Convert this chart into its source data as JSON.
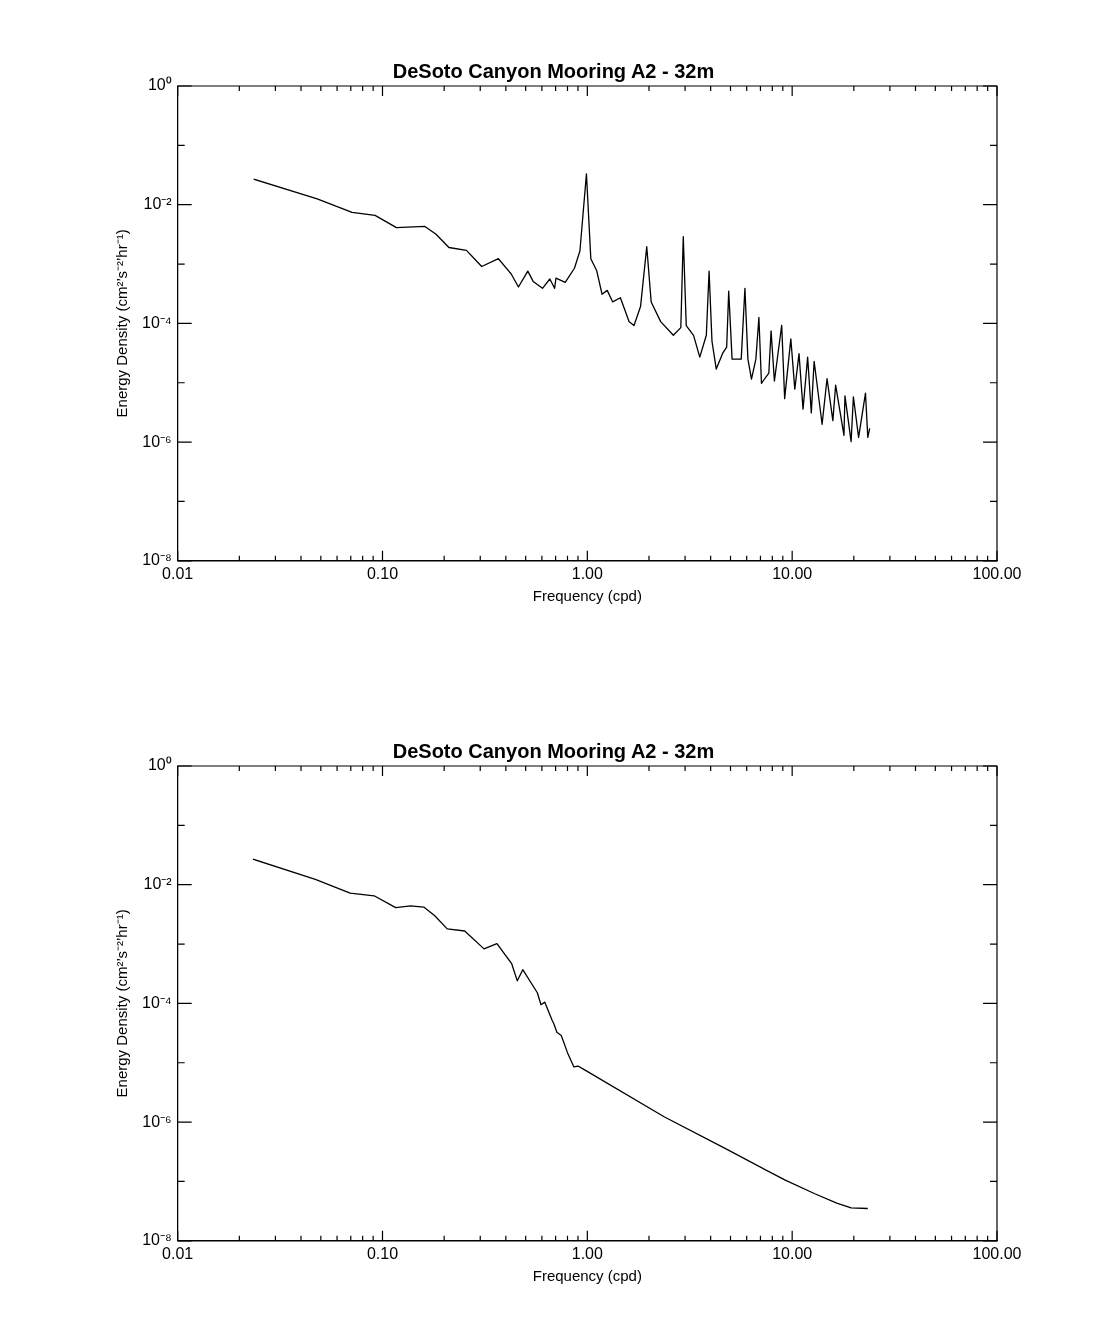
{
  "chart_data": [
    {
      "type": "line",
      "title": "DeSoto Canyon Mooring A2 - 32m",
      "xlabel": "Frequency (cpd)",
      "ylabel": "Energy Density (cm²’s⁻²’hr⁻¹)",
      "log": "xy",
      "marker": "none",
      "xlim": [
        0.01,
        100
      ],
      "ylim": [
        1e-08,
        1
      ],
      "xticks": [
        {
          "value": 0.01,
          "label": "0.01"
        },
        {
          "value": 0.02,
          "label": null
        },
        {
          "value": 0.03,
          "label": null
        },
        {
          "value": 0.04,
          "label": null
        },
        {
          "value": 0.05,
          "label": null
        },
        {
          "value": 0.06,
          "label": null
        },
        {
          "value": 0.07,
          "label": null
        },
        {
          "value": 0.08,
          "label": null
        },
        {
          "value": 0.09,
          "label": null
        },
        {
          "value": 0.1,
          "label": "0.10"
        },
        {
          "value": 0.2,
          "label": null
        },
        {
          "value": 0.3,
          "label": null
        },
        {
          "value": 0.4,
          "label": null
        },
        {
          "value": 0.5,
          "label": null
        },
        {
          "value": 0.6,
          "label": null
        },
        {
          "value": 0.7,
          "label": null
        },
        {
          "value": 0.8,
          "label": null
        },
        {
          "value": 0.9,
          "label": null
        },
        {
          "value": 1,
          "label": "1.00"
        },
        {
          "value": 2,
          "label": null
        },
        {
          "value": 3,
          "label": null
        },
        {
          "value": 4,
          "label": null
        },
        {
          "value": 5,
          "label": null
        },
        {
          "value": 6,
          "label": null
        },
        {
          "value": 7,
          "label": null
        },
        {
          "value": 8,
          "label": null
        },
        {
          "value": 9,
          "label": null
        },
        {
          "value": 10,
          "label": "10.00"
        },
        {
          "value": 20,
          "label": null
        },
        {
          "value": 30,
          "label": null
        },
        {
          "value": 40,
          "label": null
        },
        {
          "value": 50,
          "label": null
        },
        {
          "value": 60,
          "label": null
        },
        {
          "value": 70,
          "label": null
        },
        {
          "value": 80,
          "label": null
        },
        {
          "value": 90,
          "label": null
        },
        {
          "value": 100,
          "label": "100.00"
        }
      ],
      "yticks": [
        {
          "value": 1e-08,
          "label": "10⁻⁸"
        },
        {
          "value": 1e-07,
          "label": null
        },
        {
          "value": 1e-06,
          "label": "10⁻⁶"
        },
        {
          "value": 1e-05,
          "label": null
        },
        {
          "value": 0.0001,
          "label": "10⁻⁴"
        },
        {
          "value": 0.001,
          "label": null
        },
        {
          "value": 0.01,
          "label": "10⁻²"
        },
        {
          "value": 0.1,
          "label": null
        },
        {
          "value": 1,
          "label": "10⁰"
        }
      ],
      "series": [
        {
          "color": "#000000",
          "x": [
            0.0235,
            0.048,
            0.071,
            0.092,
            0.117,
            0.161,
            0.182,
            0.211,
            0.257,
            0.305,
            0.368,
            0.425,
            0.461,
            0.512,
            0.544,
            0.604,
            0.656,
            0.692,
            0.703,
            0.78,
            0.865,
            0.92,
            0.99,
            1.04,
            1.11,
            1.18,
            1.25,
            1.33,
            1.45,
            1.6,
            1.69,
            1.82,
            1.95,
            2.05,
            2.28,
            2.63,
            2.86,
            2.94,
            3.04,
            3.3,
            3.54,
            3.81,
            3.93,
            4.06,
            4.26,
            4.59,
            4.79,
            4.9,
            5.09,
            5.64,
            5.88,
            6.08,
            6.33,
            6.65,
            6.88,
            7.08,
            7.69,
            7.89,
            8.19,
            8.89,
            9.19,
            9.85,
            10.3,
            10.8,
            11.3,
            11.9,
            12.4,
            12.8,
            14,
            14.8,
            15.8,
            16.3,
            17.9,
            18.1,
            19.4,
            19.9,
            21.1,
            22.8,
            23.4,
            23.9
          ],
          "values": [
            0.027,
            0.0125,
            0.0074,
            0.0066,
            0.0041,
            0.0043,
            0.0032,
            0.0019,
            0.0017,
            0.00091,
            0.00123,
            0.00068,
            0.00041,
            0.00076,
            0.00051,
            0.00039,
            0.00056,
            0.00039,
            0.00058,
            0.00049,
            0.00085,
            0.00166,
            0.033,
            0.00123,
            0.00078,
            0.00031,
            0.00036,
            0.00023,
            0.00027,
            0.000107,
            9.2e-05,
            0.000195,
            0.00196,
            0.00023,
            0.000107,
            6.3e-05,
            8.5e-05,
            0.0029,
            9.2e-05,
            6.3e-05,
            2.7e-05,
            6.3e-05,
            0.00076,
            5e-05,
            1.7e-05,
            3.2e-05,
            4e-05,
            0.00035,
            2.5e-05,
            2.5e-05,
            0.00039,
            2.5e-05,
            1.15e-05,
            2.5e-05,
            0.000126,
            9.8e-06,
            1.45e-05,
            7.5e-05,
            1.07e-05,
            9.3e-05,
            5.4e-06,
            5.5e-05,
            7.8e-06,
            3.1e-05,
            3.6e-06,
            2.7e-05,
            3.1e-06,
            2.3e-05,
            2e-06,
            1.17e-05,
            2.3e-06,
            9.1e-06,
            1.3e-06,
            6e-06,
            1.02e-06,
            5.8e-06,
            1.2e-06,
            6.7e-06,
            1.2e-06,
            1.7e-06
          ]
        }
      ]
    },
    {
      "type": "line",
      "title": "DeSoto Canyon Mooring A2 - 32m",
      "xlabel": "Frequency (cpd)",
      "ylabel": "Energy Density (cm²’s⁻²’hr⁻¹)",
      "log": "xy",
      "marker": "none",
      "xlim": [
        0.01,
        100
      ],
      "ylim": [
        1e-08,
        1
      ],
      "xticks": [
        {
          "value": 0.01,
          "label": "0.01"
        },
        {
          "value": 0.02,
          "label": null
        },
        {
          "value": 0.03,
          "label": null
        },
        {
          "value": 0.04,
          "label": null
        },
        {
          "value": 0.05,
          "label": null
        },
        {
          "value": 0.06,
          "label": null
        },
        {
          "value": 0.07,
          "label": null
        },
        {
          "value": 0.08,
          "label": null
        },
        {
          "value": 0.09,
          "label": null
        },
        {
          "value": 0.1,
          "label": "0.10"
        },
        {
          "value": 0.2,
          "label": null
        },
        {
          "value": 0.3,
          "label": null
        },
        {
          "value": 0.4,
          "label": null
        },
        {
          "value": 0.5,
          "label": null
        },
        {
          "value": 0.6,
          "label": null
        },
        {
          "value": 0.7,
          "label": null
        },
        {
          "value": 0.8,
          "label": null
        },
        {
          "value": 0.9,
          "label": null
        },
        {
          "value": 1,
          "label": "1.00"
        },
        {
          "value": 2,
          "label": null
        },
        {
          "value": 3,
          "label": null
        },
        {
          "value": 4,
          "label": null
        },
        {
          "value": 5,
          "label": null
        },
        {
          "value": 6,
          "label": null
        },
        {
          "value": 7,
          "label": null
        },
        {
          "value": 8,
          "label": null
        },
        {
          "value": 9,
          "label": null
        },
        {
          "value": 10,
          "label": "10.00"
        },
        {
          "value": 20,
          "label": null
        },
        {
          "value": 30,
          "label": null
        },
        {
          "value": 40,
          "label": null
        },
        {
          "value": 50,
          "label": null
        },
        {
          "value": 60,
          "label": null
        },
        {
          "value": 70,
          "label": null
        },
        {
          "value": 80,
          "label": null
        },
        {
          "value": 90,
          "label": null
        },
        {
          "value": 100,
          "label": "100.00"
        }
      ],
      "yticks": [
        {
          "value": 1e-08,
          "label": "10⁻⁸"
        },
        {
          "value": 1e-07,
          "label": null
        },
        {
          "value": 1e-06,
          "label": "10⁻⁶"
        },
        {
          "value": 1e-05,
          "label": null
        },
        {
          "value": 0.0001,
          "label": "10⁻⁴"
        },
        {
          "value": 0.001,
          "label": null
        },
        {
          "value": 0.01,
          "label": "10⁻²"
        },
        {
          "value": 0.1,
          "label": null
        },
        {
          "value": 1,
          "label": "10⁰"
        }
      ],
      "series": [
        {
          "color": "#000000",
          "x": [
            0.0233,
            0.047,
            0.0695,
            0.091,
            0.116,
            0.137,
            0.159,
            0.18,
            0.207,
            0.252,
            0.313,
            0.362,
            0.427,
            0.455,
            0.484,
            0.57,
            0.594,
            0.62,
            0.673,
            0.687,
            0.71,
            0.746,
            0.8,
            0.86,
            0.9,
            0.975,
            2.37,
            4.78,
            9.25,
            12.9,
            16.5,
            19.4,
            23.4
          ],
          "values": [
            0.027,
            0.0123,
            0.0072,
            0.0065,
            0.0041,
            0.0044,
            0.0042,
            0.003,
            0.0018,
            0.00166,
            0.00083,
            0.00102,
            0.00047,
            0.00024,
            0.00037,
            0.000151,
            9.5e-05,
            0.000105,
            5.2e-05,
            4.5e-05,
            3.26e-05,
            2.88e-05,
            1.48e-05,
            8.5e-06,
            8.8e-06,
            7.5e-06,
            1.23e-06,
            3.5e-07,
            1.05e-07,
            6.2e-08,
            4.3e-08,
            3.6e-08,
            3.5e-08
          ]
        }
      ]
    }
  ]
}
